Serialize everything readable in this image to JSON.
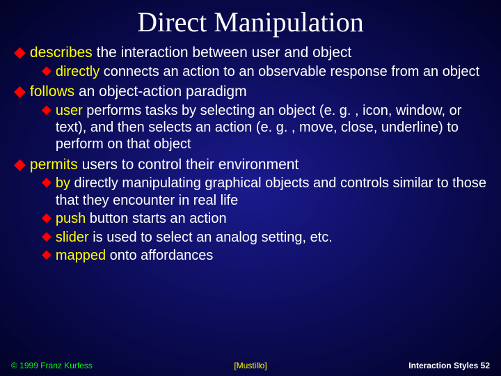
{
  "colors": {
    "background_center": "#1a1a8e",
    "background_edge": "#020228",
    "bullet_color": "#ff0000",
    "firstword_color": "#ffff00",
    "body_text": "#ffffff",
    "title_color": "#ffffff",
    "footer_left": "#00ff00",
    "footer_center": "#ffff00",
    "footer_right": "#ffffff"
  },
  "typography": {
    "title_font": "Times New Roman",
    "title_fontsize": 40,
    "body_font": "Arial",
    "lvl1_fontsize": 21,
    "lvl2_fontsize": 20,
    "footer_fontsize": 12
  },
  "title": "Direct Manipulation",
  "points": {
    "p1": {
      "first": "describes",
      "rest": " the interaction between user  and object"
    },
    "p1a": {
      "first": "directly",
      "rest": " connects an action to an observable response from an object"
    },
    "p2": {
      "first": "follows",
      "rest": " an object-action paradigm"
    },
    "p2a": {
      "first": "user",
      "rest": " performs tasks by selecting an object (e. g. , icon, window, or text), and then selects an action (e. g. , move, close, underline) to perform on that object"
    },
    "p3": {
      "first": "permits",
      "rest": " users to control their environment"
    },
    "p3a": {
      "first": "by",
      "rest": " directly manipulating graphical objects and controls similar to those that they encounter in real life"
    },
    "p3b": {
      "first": "push",
      "rest": " button starts an action"
    },
    "p3c": {
      "first": "slider",
      "rest": " is used to select an analog setting, etc."
    },
    "p3d": {
      "first": "mapped",
      "rest": " onto affordances"
    }
  },
  "footer": {
    "left": "© 1999 Franz Kurfess",
    "center": "[Mustillo]",
    "right": "Interaction Styles  52"
  }
}
